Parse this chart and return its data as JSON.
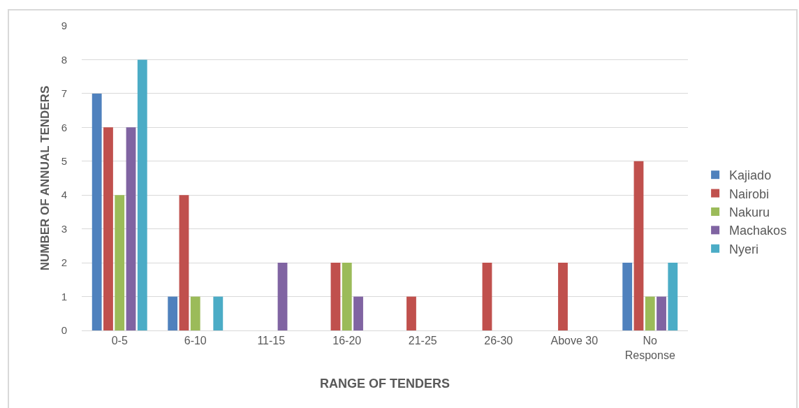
{
  "chart_data": {
    "type": "bar",
    "xlabel": "RANGE OF TENDERS",
    "ylabel": "NUMBER OF ANNUAL TENDERS",
    "categories": [
      "0-5",
      "6-10",
      "11-15",
      "16-20",
      "21-25",
      "26-30",
      "Above 30",
      "No\nResponse"
    ],
    "series": [
      {
        "name": "Kajiado",
        "color": "#4f81bd",
        "values": [
          7,
          1,
          0,
          0,
          0,
          0,
          0,
          2
        ]
      },
      {
        "name": "Nairobi",
        "color": "#c0504d",
        "values": [
          6,
          4,
          0,
          2,
          1,
          2,
          2,
          5
        ]
      },
      {
        "name": "Nakuru",
        "color": "#9bbb59",
        "values": [
          4,
          1,
          0,
          2,
          0,
          0,
          0,
          1
        ]
      },
      {
        "name": "Machakos",
        "color": "#8064a2",
        "values": [
          6,
          0,
          2,
          1,
          0,
          0,
          0,
          1
        ]
      },
      {
        "name": "Nyeri",
        "color": "#4bacc6",
        "values": [
          8,
          1,
          0,
          0,
          0,
          0,
          0,
          2
        ]
      }
    ],
    "ylim": [
      0,
      9
    ],
    "yticks": [
      0,
      1,
      2,
      3,
      4,
      5,
      6,
      7,
      8,
      9
    ],
    "grid": "y",
    "legend": "right"
  }
}
